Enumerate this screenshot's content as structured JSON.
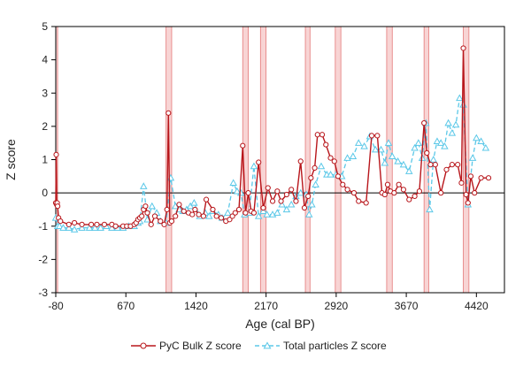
{
  "chart_data": {
    "type": "line",
    "xlabel": "Age (cal BP)",
    "ylabel": "Z score",
    "xlim": [
      -80,
      4720
    ],
    "ylim": [
      -3,
      5
    ],
    "xticks": [
      "-80",
      "670",
      "1420",
      "2170",
      "2920",
      "3670",
      "4420"
    ],
    "xtick_values": [
      -80,
      670,
      1420,
      2170,
      2920,
      3670,
      4420
    ],
    "yticks": [
      "-3",
      "-2",
      "-1",
      "0",
      "1",
      "2",
      "3",
      "4",
      "5"
    ],
    "ytick_values": [
      -3,
      -2,
      -1,
      0,
      1,
      2,
      3,
      4,
      5
    ],
    "legend_position": "bottom",
    "highlight_bands": [
      [
        -80,
        -60
      ],
      [
        1100,
        1160
      ],
      [
        1920,
        1980
      ],
      [
        2110,
        2170
      ],
      [
        2590,
        2640
      ],
      [
        2910,
        2970
      ],
      [
        3460,
        3520
      ],
      [
        3860,
        3910
      ],
      [
        4280,
        4340
      ]
    ],
    "series": [
      {
        "name": "PyC Bulk Z score",
        "color": "#b8161b",
        "marker": "circle",
        "x": [
          -80,
          -75,
          -70,
          -65,
          -60,
          -50,
          -30,
          60,
          120,
          200,
          300,
          360,
          440,
          520,
          560,
          640,
          680,
          720,
          760,
          780,
          800,
          820,
          840,
          860,
          880,
          900,
          940,
          980,
          1040,
          1080,
          1110,
          1125,
          1140,
          1160,
          1200,
          1240,
          1290,
          1340,
          1380,
          1410,
          1450,
          1500,
          1530,
          1600,
          1640,
          1690,
          1740,
          1780,
          1810,
          1840,
          1880,
          1920,
          1950,
          1980,
          2010,
          2040,
          2090,
          2140,
          2190,
          2240,
          2290,
          2330,
          2390,
          2440,
          2490,
          2540,
          2580,
          2620,
          2650,
          2690,
          2720,
          2770,
          2810,
          2860,
          2900,
          2940,
          2990,
          3040,
          3110,
          3160,
          3240,
          3300,
          3360,
          3410,
          3440,
          3470,
          3500,
          3540,
          3590,
          3640,
          3700,
          3760,
          3810,
          3860,
          3890,
          3930,
          3980,
          4040,
          4100,
          4160,
          4220,
          4260,
          4280,
          4310,
          4330,
          4360,
          4400,
          4470,
          4550
        ],
        "y": [
          -0.3,
          1.15,
          -0.35,
          -0.3,
          -0.4,
          -0.75,
          -0.85,
          -0.95,
          -0.9,
          -0.95,
          -0.95,
          -0.95,
          -0.95,
          -0.95,
          -1.0,
          -1.0,
          -1.0,
          -1.0,
          -0.95,
          -0.9,
          -0.8,
          -0.75,
          -0.7,
          -0.5,
          -0.4,
          -0.6,
          -0.95,
          -0.7,
          -0.85,
          -0.95,
          -0.5,
          2.4,
          -0.9,
          -0.85,
          -0.7,
          -0.35,
          -0.55,
          -0.6,
          -0.65,
          -0.5,
          -0.65,
          -0.7,
          -0.2,
          -0.5,
          -0.7,
          -0.75,
          -0.85,
          -0.8,
          -0.7,
          -0.6,
          -0.5,
          1.42,
          -0.6,
          0.0,
          -0.55,
          -0.6,
          0.92,
          -0.45,
          0.15,
          -0.25,
          0.05,
          -0.25,
          -0.05,
          0.1,
          -0.25,
          0.95,
          -0.45,
          -0.1,
          0.45,
          0.75,
          1.75,
          1.75,
          1.45,
          1.05,
          0.95,
          0.5,
          0.25,
          0.1,
          0.0,
          -0.25,
          -0.3,
          1.72,
          1.72,
          0.0,
          -0.05,
          0.25,
          0.05,
          0.0,
          0.25,
          0.1,
          -0.2,
          -0.1,
          0.05,
          2.1,
          1.2,
          0.85,
          0.85,
          0.0,
          0.7,
          0.85,
          0.85,
          0.3,
          4.35,
          -0.05,
          -0.3,
          0.5,
          0.0,
          0.45,
          0.45
        ]
      },
      {
        "name": "Total particles Z score",
        "color": "#5bc8e8",
        "marker": "triangle",
        "x": [
          -80,
          -60,
          -40,
          0,
          60,
          120,
          200,
          280,
          340,
          400,
          460,
          520,
          580,
          640,
          700,
          760,
          800,
          820,
          860,
          900,
          950,
          1000,
          1040,
          1100,
          1150,
          1200,
          1240,
          1280,
          1320,
          1360,
          1400,
          1460,
          1520,
          1560,
          1600,
          1660,
          1700,
          1760,
          1820,
          1860,
          1900,
          1940,
          1990,
          2040,
          2090,
          2140,
          2180,
          2240,
          2290,
          2340,
          2390,
          2440,
          2490,
          2540,
          2600,
          2630,
          2660,
          2700,
          2760,
          2820,
          2860,
          2920,
          2980,
          3040,
          3100,
          3160,
          3220,
          3280,
          3340,
          3400,
          3440,
          3480,
          3520,
          3580,
          3640,
          3700,
          3760,
          3800,
          3840,
          3880,
          3920,
          3960,
          4000,
          4040,
          4080,
          4120,
          4160,
          4200,
          4240,
          4280,
          4330,
          4380,
          4420,
          4470,
          4520
        ],
        "y": [
          -0.75,
          -1.0,
          -1.0,
          -1.05,
          -1.05,
          -1.1,
          -1.05,
          -1.05,
          -1.05,
          -1.05,
          -1.0,
          -1.05,
          -1.05,
          -1.05,
          -1.0,
          -1.0,
          -0.9,
          -0.85,
          0.2,
          -0.8,
          -0.4,
          -0.6,
          -0.85,
          -0.9,
          0.45,
          -0.4,
          -0.5,
          -0.55,
          -0.5,
          -0.4,
          -0.3,
          -0.7,
          -0.6,
          -0.7,
          -0.55,
          -0.65,
          -0.75,
          -0.6,
          0.3,
          0.05,
          0.0,
          -0.65,
          -0.6,
          0.8,
          -0.7,
          -0.55,
          -0.65,
          -0.65,
          -0.6,
          -0.35,
          -0.5,
          -0.35,
          -0.1,
          0.0,
          -0.05,
          -0.65,
          -0.35,
          0.25,
          0.8,
          0.55,
          0.55,
          0.55,
          0.5,
          1.05,
          1.1,
          1.5,
          1.4,
          1.7,
          1.3,
          1.3,
          0.9,
          1.5,
          1.1,
          0.95,
          0.85,
          0.65,
          1.35,
          1.5,
          1.05,
          2.1,
          -0.5,
          1.0,
          1.55,
          1.5,
          1.4,
          2.1,
          1.8,
          2.05,
          2.85,
          2.65,
          -0.35,
          1.05,
          1.65,
          1.55,
          1.35
        ]
      }
    ]
  }
}
